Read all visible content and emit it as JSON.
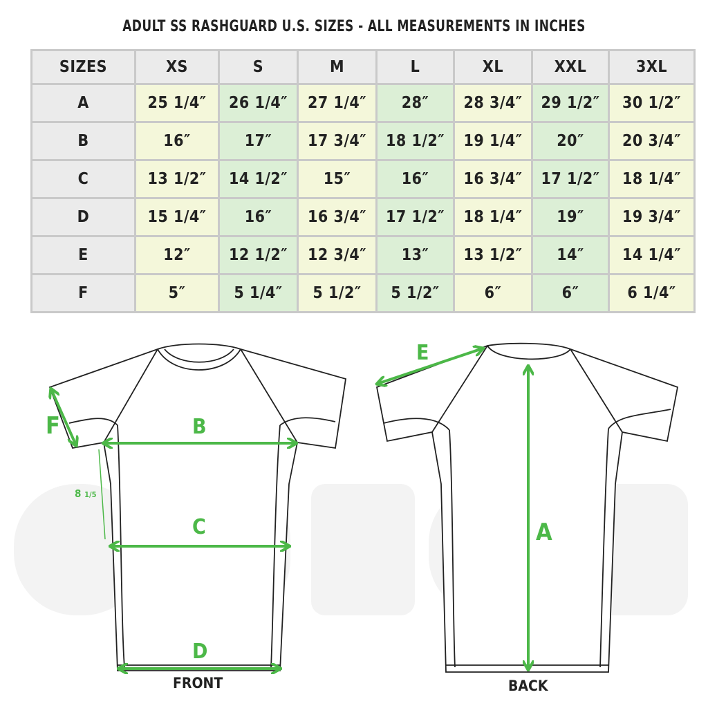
{
  "title": "ADULT SS RASHGUARD U.S. SIZES - ALL MEASUREMENTS IN INCHES",
  "table": {
    "corner": "SIZES",
    "sizes": [
      "XS",
      "S",
      "M",
      "L",
      "XL",
      "XXL",
      "3XL"
    ],
    "rows": [
      {
        "label": "A",
        "values": [
          "25 1/4″",
          "26 1/4″",
          "27 1/4″",
          "28″",
          "28 3/4″",
          "29 1/2″",
          "30 1/2″"
        ]
      },
      {
        "label": "B",
        "values": [
          "16″",
          "17″",
          "17 3/4″",
          "18 1/2″",
          "19 1/4″",
          "20″",
          "20 3/4″"
        ]
      },
      {
        "label": "C",
        "values": [
          "13 1/2″",
          "14 1/2″",
          "15″",
          "16″",
          "16 3/4″",
          "17 1/2″",
          "18 1/4″"
        ]
      },
      {
        "label": "D",
        "values": [
          "15 1/4″",
          "16″",
          "16 3/4″",
          "17 1/2″",
          "18 1/4″",
          "19″",
          "19 3/4″"
        ]
      },
      {
        "label": "E",
        "values": [
          "12″",
          "12 1/2″",
          "12 3/4″",
          "13″",
          "13 1/2″",
          "14″",
          "14 1/4″"
        ]
      },
      {
        "label": "F",
        "values": [
          "5″",
          "5 1/4″",
          "5 1/2″",
          "5 1/2″",
          "6″",
          "6″",
          "6 1/4″"
        ]
      }
    ]
  },
  "diagram": {
    "front_label": "FRONT",
    "back_label": "BACK",
    "labels": {
      "A": "A",
      "B": "B",
      "C": "C",
      "D": "D",
      "E": "E",
      "F": "F"
    },
    "side_measure_main": "8",
    "side_measure_fraction": "1/5"
  },
  "colors": {
    "accent": "#4cb848",
    "cell_yellow": "#f4f7da",
    "cell_green": "#dcefd6",
    "header_gray": "#ebebeb"
  }
}
